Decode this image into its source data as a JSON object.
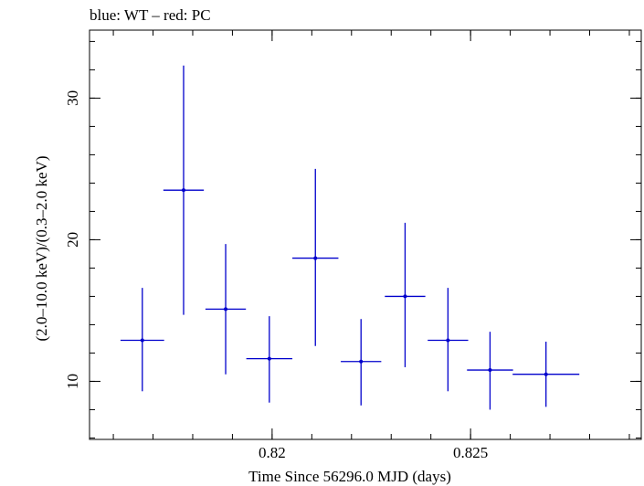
{
  "chart_data": {
    "type": "scatter",
    "title": "blue: WT – red: PC",
    "xlabel": "Time Since 56296.0 MJD (days)",
    "ylabel": "(2.0–10.0 keV)/(0.3–2.0 keV)",
    "xlim": [
      0.8154,
      0.8293
    ],
    "ylim": [
      5.9,
      34.8
    ],
    "x_ticks": [
      0.82,
      0.825
    ],
    "x_tick_labels": [
      "0.82",
      "0.825"
    ],
    "y_ticks": [
      10,
      20,
      30
    ],
    "y_tick_labels": [
      "10",
      "20",
      "30"
    ],
    "grid": false,
    "series": [
      {
        "color": "#0000cc",
        "points": [
          {
            "x": 0.81673,
            "y": 12.9,
            "xerr": 0.00055,
            "ylo": 9.3,
            "yhi": 16.6
          },
          {
            "x": 0.81777,
            "y": 23.5,
            "xerr": 0.00051,
            "ylo": 14.7,
            "yhi": 32.3
          },
          {
            "x": 0.81883,
            "y": 15.1,
            "xerr": 0.00051,
            "ylo": 10.5,
            "yhi": 19.7
          },
          {
            "x": 0.81993,
            "y": 11.6,
            "xerr": 0.00058,
            "ylo": 8.5,
            "yhi": 14.6
          },
          {
            "x": 0.82109,
            "y": 18.7,
            "xerr": 0.00058,
            "ylo": 12.5,
            "yhi": 25.0
          },
          {
            "x": 0.82224,
            "y": 11.4,
            "xerr": 0.00051,
            "ylo": 8.3,
            "yhi": 14.4
          },
          {
            "x": 0.82335,
            "y": 16.0,
            "xerr": 0.00051,
            "ylo": 11.0,
            "yhi": 21.2
          },
          {
            "x": 0.82443,
            "y": 12.9,
            "xerr": 0.00051,
            "ylo": 9.3,
            "yhi": 16.6
          },
          {
            "x": 0.82549,
            "y": 10.8,
            "xerr": 0.00058,
            "ylo": 8.0,
            "yhi": 13.5
          },
          {
            "x": 0.8269,
            "y": 10.5,
            "xerr": 0.00084,
            "ylo": 8.2,
            "yhi": 12.8
          }
        ]
      }
    ]
  }
}
